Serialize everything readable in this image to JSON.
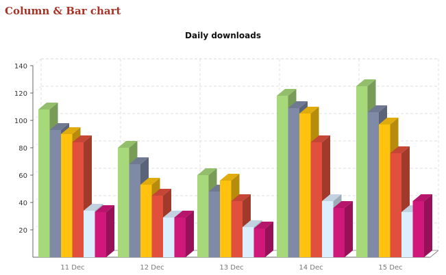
{
  "page": {
    "title": "Column & Bar chart"
  },
  "chart_data": {
    "type": "bar",
    "title": "Daily downloads",
    "xlabel": "",
    "ylabel": "",
    "categories": [
      "11 Dec",
      "12 Dec",
      "13 Dec",
      "14 Dec",
      "15 Dec"
    ],
    "ylim": [
      0,
      140
    ],
    "yticks": [
      20,
      40,
      60,
      80,
      100,
      120,
      140
    ],
    "grid": true,
    "series": [
      {
        "color": "#a7d87a",
        "values": [
          108,
          80,
          60,
          118,
          125
        ]
      },
      {
        "color": "#7f8aa6",
        "values": [
          93,
          68,
          48,
          109,
          106
        ]
      },
      {
        "color": "#ffc30f",
        "values": [
          90,
          53,
          56,
          105,
          97
        ]
      },
      {
        "color": "#e0503c",
        "values": [
          84,
          45,
          41,
          84,
          76
        ]
      },
      {
        "color": "#dcefff",
        "values": [
          34,
          29,
          22,
          41,
          33
        ]
      },
      {
        "color": "#d0177a",
        "values": [
          33,
          29,
          21,
          36,
          41
        ]
      }
    ]
  }
}
